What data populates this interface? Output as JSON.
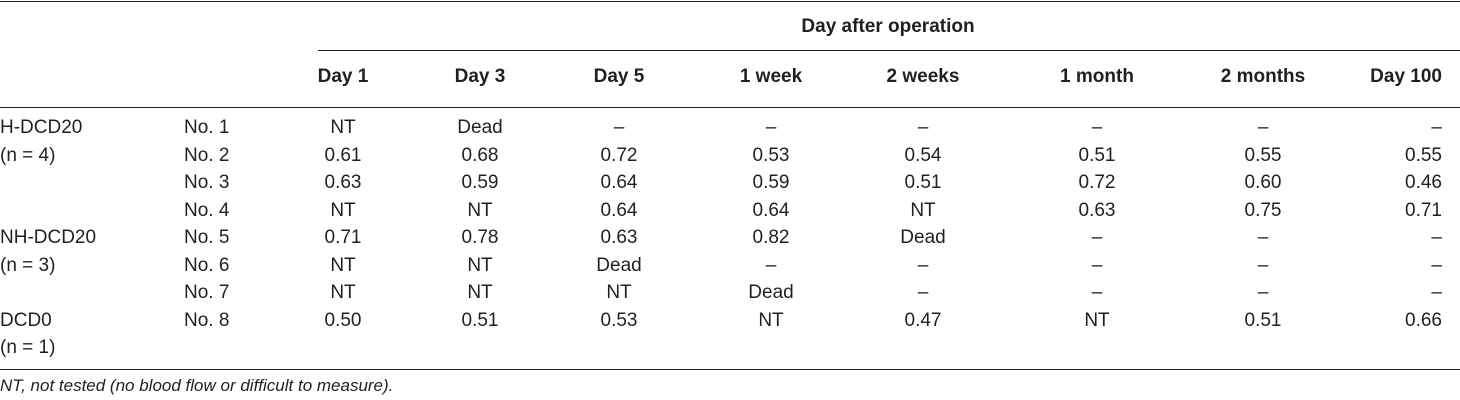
{
  "table": {
    "super_header": "Day after operation",
    "columns": [
      "Day 1",
      "Day 3",
      "Day 5",
      "1 week",
      "2 weeks",
      "1 month",
      "2 months",
      "Day 100"
    ],
    "rows": [
      {
        "group": "H-DCD20",
        "no": "No. 1",
        "values": [
          "NT",
          "Dead",
          "–",
          "–",
          "–",
          "–",
          "–",
          "–"
        ]
      },
      {
        "group": "(n = 4)",
        "no": "No. 2",
        "values": [
          "0.61",
          "0.68",
          "0.72",
          "0.53",
          "0.54",
          "0.51",
          "0.55",
          "0.55"
        ]
      },
      {
        "group": "",
        "no": "No. 3",
        "values": [
          "0.63",
          "0.59",
          "0.64",
          "0.59",
          "0.51",
          "0.72",
          "0.60",
          "0.46"
        ]
      },
      {
        "group": "",
        "no": "No. 4",
        "values": [
          "NT",
          "NT",
          "0.64",
          "0.64",
          "NT",
          "0.63",
          "0.75",
          "0.71"
        ]
      },
      {
        "group": "NH-DCD20",
        "no": "No. 5",
        "values": [
          "0.71",
          "0.78",
          "0.63",
          "0.82",
          "Dead",
          "–",
          "–",
          "–"
        ]
      },
      {
        "group": "(n = 3)",
        "no": "No. 6",
        "values": [
          "NT",
          "NT",
          "Dead",
          "–",
          "–",
          "–",
          "–",
          "–"
        ]
      },
      {
        "group": "",
        "no": "No. 7",
        "values": [
          "NT",
          "NT",
          "NT",
          "Dead",
          "–",
          "–",
          "–",
          "–"
        ]
      },
      {
        "group": "DCD0",
        "no": "No. 8",
        "values": [
          "0.50",
          "0.51",
          "0.53",
          "NT",
          "0.47",
          "NT",
          "0.51",
          "0.66"
        ]
      },
      {
        "group": "(n = 1)",
        "no": "",
        "values": [
          "",
          "",
          "",
          "",
          "",
          "",
          "",
          ""
        ]
      }
    ],
    "footnote": "NT, not tested (no blood flow or difficult to measure)."
  }
}
